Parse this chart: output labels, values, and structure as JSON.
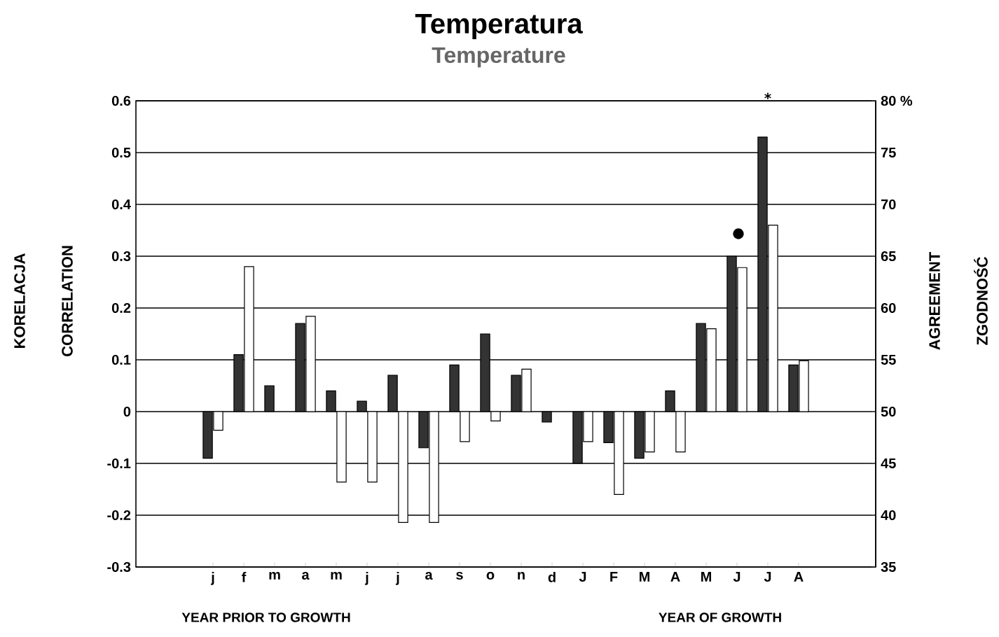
{
  "chart_data": {
    "type": "bar",
    "title": "Temperatura",
    "subtitle": "Temperature",
    "ylabel": "CORRELATION",
    "y2label": "AGREEMENT",
    "categories": [
      null,
      null,
      "j",
      "f",
      "m",
      "a",
      "m",
      "j",
      "j",
      "a",
      "s",
      "o",
      "n",
      "d",
      "J",
      "F",
      "M",
      "A",
      "M",
      "J",
      "J",
      "A",
      null,
      null
    ],
    "series": [
      {
        "color": "#333333",
        "values": [
          null,
          null,
          -0.09,
          0.11,
          0.05,
          0.17,
          0.04,
          0.02,
          0.07,
          -0.07,
          0.09,
          0.15,
          0.07,
          -0.02,
          -0.1,
          -0.06,
          -0.09,
          0.04,
          0.17,
          0.3,
          0.53,
          0.09,
          null,
          null
        ]
      },
      {
        "color": "#ffffff",
        "axis": "y2",
        "base": [
          null,
          null,
          50,
          50,
          null,
          50,
          50,
          50,
          50,
          50,
          50,
          50,
          50,
          null,
          50,
          50,
          50,
          50,
          50,
          50,
          50,
          50,
          null,
          null
        ],
        "values": [
          null,
          null,
          -1.8,
          14,
          null,
          9.2,
          -6.8,
          -6.8,
          -10.7,
          -10.7,
          -2.9,
          -0.9,
          4.1,
          null,
          -2.9,
          -8,
          -3.9,
          -3.9,
          8,
          13.9,
          18,
          4.9,
          null,
          null
        ]
      }
    ],
    "ylim": [
      -0.3,
      0.6
    ],
    "yticks": [
      -0.3,
      -0.2,
      -0.1,
      0,
      0.1,
      0.2,
      0.3,
      0.4,
      0.5,
      0.6
    ],
    "y2lim": [
      35,
      80
    ],
    "y2ticks": [
      35,
      40,
      45,
      50,
      55,
      60,
      65,
      70,
      75,
      {
        "value": 80,
        "label": "80 %"
      }
    ],
    "grid": "y",
    "annotations": [
      "KORELACJA",
      "ZGODNOŚĆ",
      "YEAR PRIOR TO GROWTH",
      "YEAR OF GROWTH",
      "●",
      "*"
    ]
  }
}
